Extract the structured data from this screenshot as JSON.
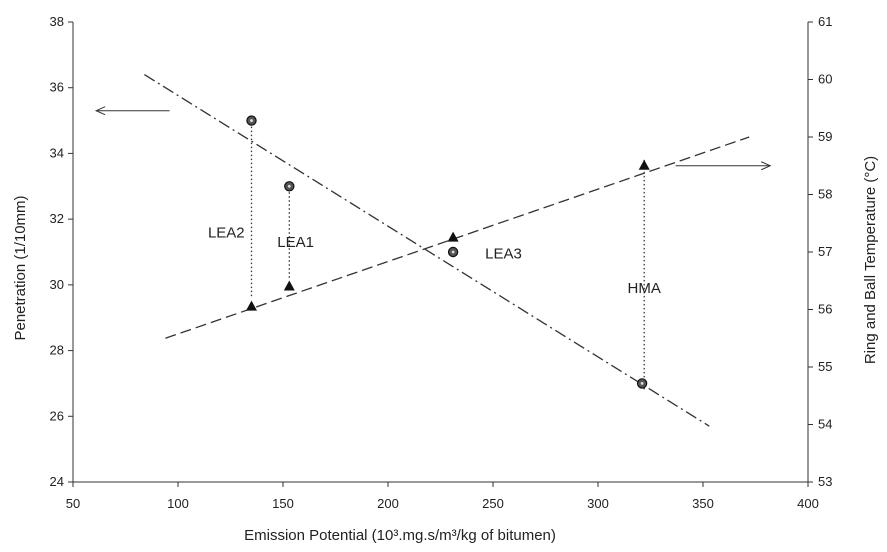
{
  "chart_data": {
    "type": "scatter",
    "title": "",
    "xlabel": "Emission Potential (10³.mg.s/m³/kg of bitumen)",
    "ylabel_left": "Penetration (1/10mm)",
    "ylabel_right": "Ring and Ball Temperature (°C)",
    "xlim": [
      50,
      400
    ],
    "ylim_left": [
      24,
      38
    ],
    "ylim_right": [
      53,
      61
    ],
    "xticks": [
      50,
      100,
      150,
      200,
      250,
      300,
      350,
      400
    ],
    "yticks_left": [
      24,
      26,
      28,
      30,
      32,
      34,
      36,
      38
    ],
    "yticks_right": [
      53,
      54,
      55,
      56,
      57,
      58,
      59,
      60,
      61
    ],
    "grid": false,
    "series": [
      {
        "axis": "left",
        "marker": "circle",
        "points": [
          {
            "x": 135,
            "y": 35.0
          },
          {
            "x": 153,
            "y": 33.0
          },
          {
            "x": 231,
            "y": 31.0
          },
          {
            "x": 321,
            "y": 27.0
          }
        ]
      },
      {
        "axis": "right",
        "marker": "triangle",
        "points": [
          {
            "x": 135,
            "y": 56.05
          },
          {
            "x": 153,
            "y": 56.4
          },
          {
            "x": 231,
            "y": 57.25
          },
          {
            "x": 322,
            "y": 58.5
          }
        ]
      }
    ],
    "trendlines": [
      {
        "axis": "left",
        "style": "dash-dot",
        "from": {
          "x": 84,
          "y": 36.4
        },
        "to": {
          "x": 353,
          "y": 25.7
        }
      },
      {
        "axis": "right",
        "style": "dashed",
        "from": {
          "x": 94,
          "y": 55.5
        },
        "to": {
          "x": 372,
          "y": 59.0
        }
      }
    ],
    "connectors": [
      {
        "x": 135,
        "from_left": 35.0,
        "to_right": 56.05
      },
      {
        "x": 153,
        "from_left": 33.0,
        "to_right": 56.4
      },
      {
        "x": 322,
        "from_left": 27.0,
        "to_right": 58.5
      }
    ],
    "annotations": [
      {
        "text": "LEA2",
        "x": 123,
        "y_left": 31.6
      },
      {
        "text": "LEA1",
        "x": 156,
        "y_left": 31.3
      },
      {
        "text": "LEA3",
        "x": 255,
        "y_left": 30.95
      },
      {
        "text": "HMA",
        "x": 322,
        "y_left": 29.9
      }
    ],
    "arrows": [
      {
        "direction": "left",
        "axis": "left",
        "x_from": 96,
        "x_to": 61,
        "y": 35.3
      },
      {
        "direction": "right",
        "axis": "right",
        "x_from": 337,
        "x_to": 382,
        "y": 58.5
      }
    ]
  }
}
